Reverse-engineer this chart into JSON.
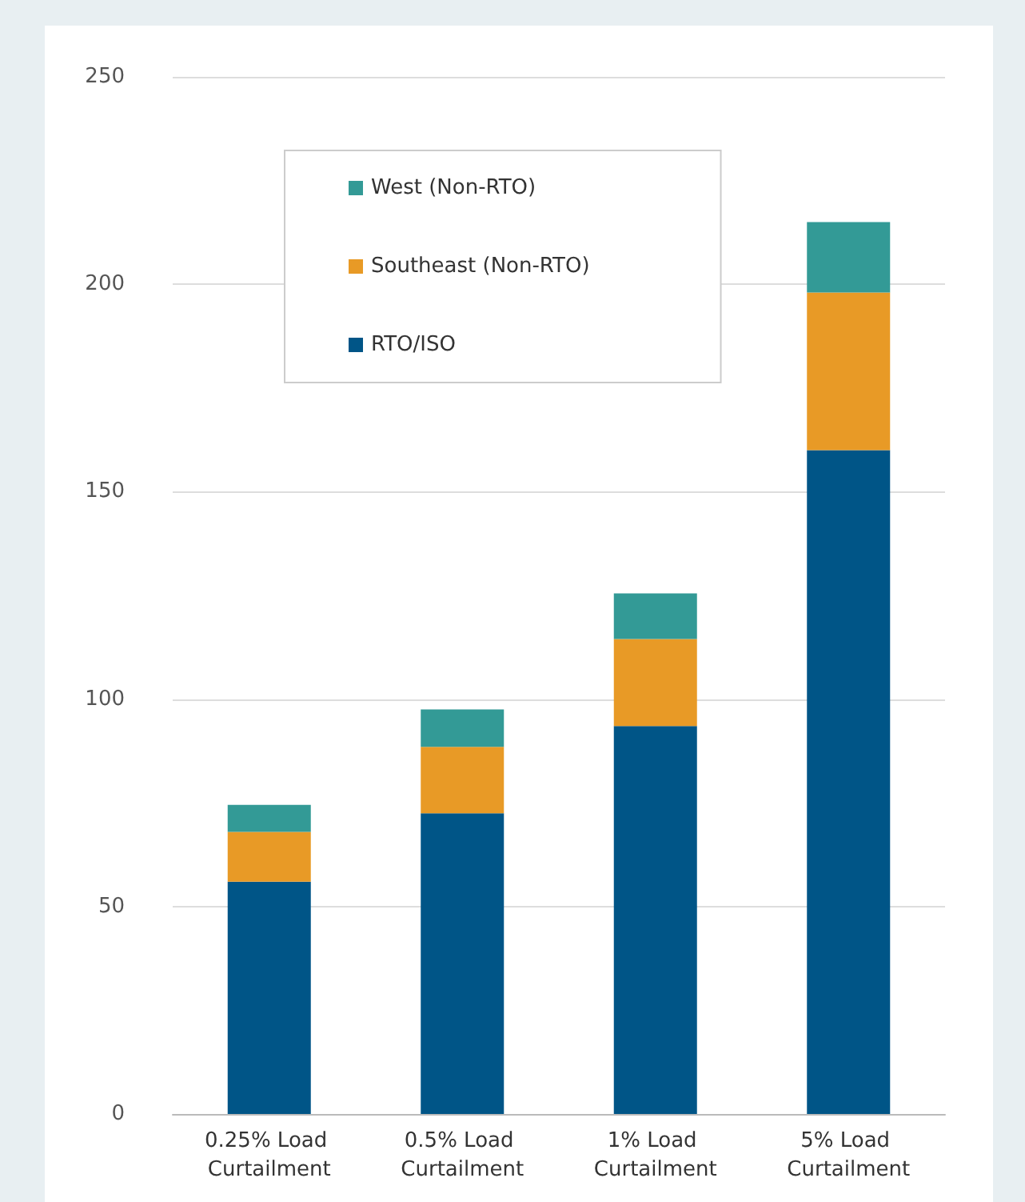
{
  "chart_data": {
    "type": "bar",
    "stacked": true,
    "categories": [
      "0.25% Load Curtailment",
      "0.5% Load Curtailment",
      "1% Load Curtailment",
      "5% Load Curtailment"
    ],
    "series": [
      {
        "name": "RTO/ISO",
        "color": "#005587",
        "values": [
          56,
          72.5,
          93.5,
          160
        ]
      },
      {
        "name": "Southeast (Non-RTO)",
        "color": "#e89a26",
        "values": [
          12,
          16,
          21,
          38
        ]
      },
      {
        "name": "West (Non-RTO)",
        "color": "#339a96",
        "values": [
          6.5,
          9,
          11,
          17
        ]
      }
    ],
    "ylim": [
      0,
      250
    ],
    "yticks": [
      0,
      50,
      100,
      150,
      200,
      250
    ],
    "grid": "y",
    "legend": "top left"
  }
}
